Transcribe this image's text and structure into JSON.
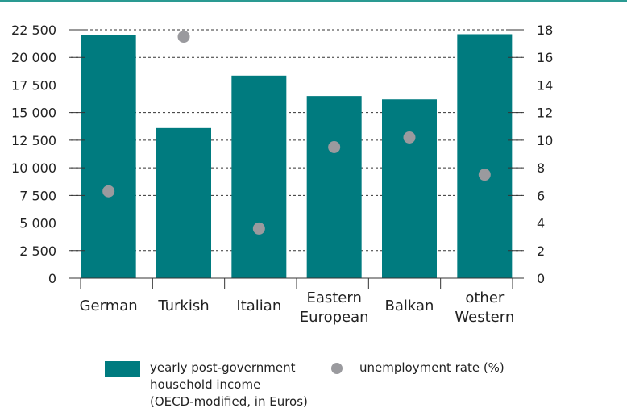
{
  "colors": {
    "bar": "#007b7f",
    "dot": "#9a9a9e",
    "top_rule": "#2a9a92",
    "grid": "#333333",
    "axis": "#333333"
  },
  "chart_data": {
    "type": "bar",
    "categories": [
      [
        "German"
      ],
      [
        "Turkish"
      ],
      [
        "Italian"
      ],
      [
        "Eastern",
        "European"
      ],
      [
        "Balkan"
      ],
      [
        "other",
        "Western"
      ]
    ],
    "series": [
      {
        "name": "yearly post-government household income (OECD-modified, in Euros)",
        "type": "bar",
        "axis": "left",
        "values": [
          22000,
          13600,
          18350,
          16500,
          16200,
          22100
        ]
      },
      {
        "name": "unemployment rate (%)",
        "type": "scatter",
        "axis": "right",
        "values": [
          6.3,
          17.5,
          3.6,
          9.5,
          10.2,
          7.5
        ]
      }
    ],
    "y_left": {
      "ylim": [
        0,
        22500
      ],
      "ticks": [
        0,
        2500,
        5000,
        7500,
        10000,
        12500,
        15000,
        17500,
        20000,
        22500
      ],
      "tick_labels": [
        "0",
        "2 500",
        "5 000",
        "7 500",
        "10 000",
        "12 500",
        "15 000",
        "17 500",
        "20 000",
        "22 500"
      ]
    },
    "y_right": {
      "ylim": [
        0,
        18
      ],
      "ticks": [
        0,
        2,
        4,
        6,
        8,
        10,
        12,
        14,
        16,
        18
      ],
      "tick_labels": [
        "0",
        "2",
        "4",
        "6",
        "8",
        "10",
        "12",
        "14",
        "16",
        "18"
      ]
    },
    "grid": true,
    "legend_position": "bottom"
  },
  "legend": {
    "income_lines": [
      "yearly post-government",
      "household income",
      "(OECD-modified, in Euros)"
    ],
    "unemployment": "unemployment rate (%)"
  }
}
